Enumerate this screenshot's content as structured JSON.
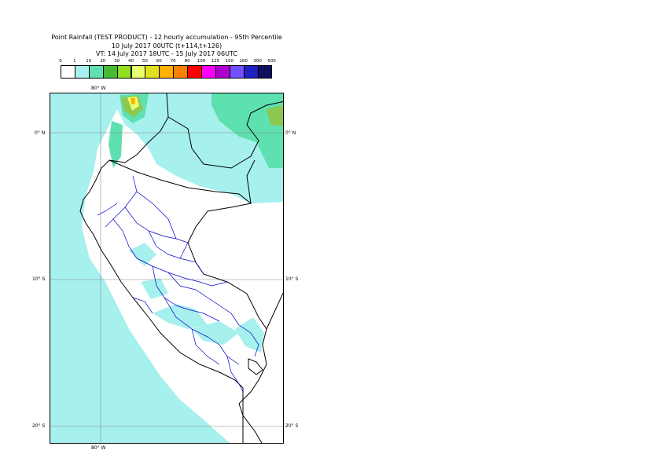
{
  "header": {
    "title_line1": "Point Rainfall (TEST PRODUCT) - 12 hourly accumulation - 95th Percentile",
    "title_line2": "10 July 2017 00UTC (t+114,t+126)",
    "title_line3": "VT: 14 July 2017 18UTC - 15 July 2017 06UTC"
  },
  "legend": {
    "thresholds": [
      "0",
      "1",
      "10",
      "20",
      "30",
      "40",
      "50",
      "60",
      "70",
      "80",
      "100",
      "125",
      "150",
      "200",
      "300",
      "500"
    ],
    "colors": [
      "#ffffff",
      "#a6f0ee",
      "#5ee0b0",
      "#44bb33",
      "#90e020",
      "#e8ff70",
      "#e0e020",
      "#ffb000",
      "#ff7f00",
      "#ff0000",
      "#ff00ff",
      "#b000d0",
      "#7050ff",
      "#2020c0",
      "#101060"
    ]
  },
  "map": {
    "axis_labels": {
      "lon_top": "80° W",
      "lon_bottom": "80° W",
      "lat_0_left": "0° N",
      "lat_0_right": "0° N",
      "lat_10_left": "10° S",
      "lat_10_right": "10° S",
      "lat_20_left": "20° S",
      "lat_20_right": "20° S"
    },
    "colors": {
      "light_cyan": "#a6f0ee",
      "teal": "#5ee0b0",
      "green": "#8cc850",
      "yellow": "#e8ff70",
      "orange": "#ffb000",
      "coast": "#000000",
      "admin_borders": "#0000cc",
      "graticule": "#888888"
    }
  }
}
